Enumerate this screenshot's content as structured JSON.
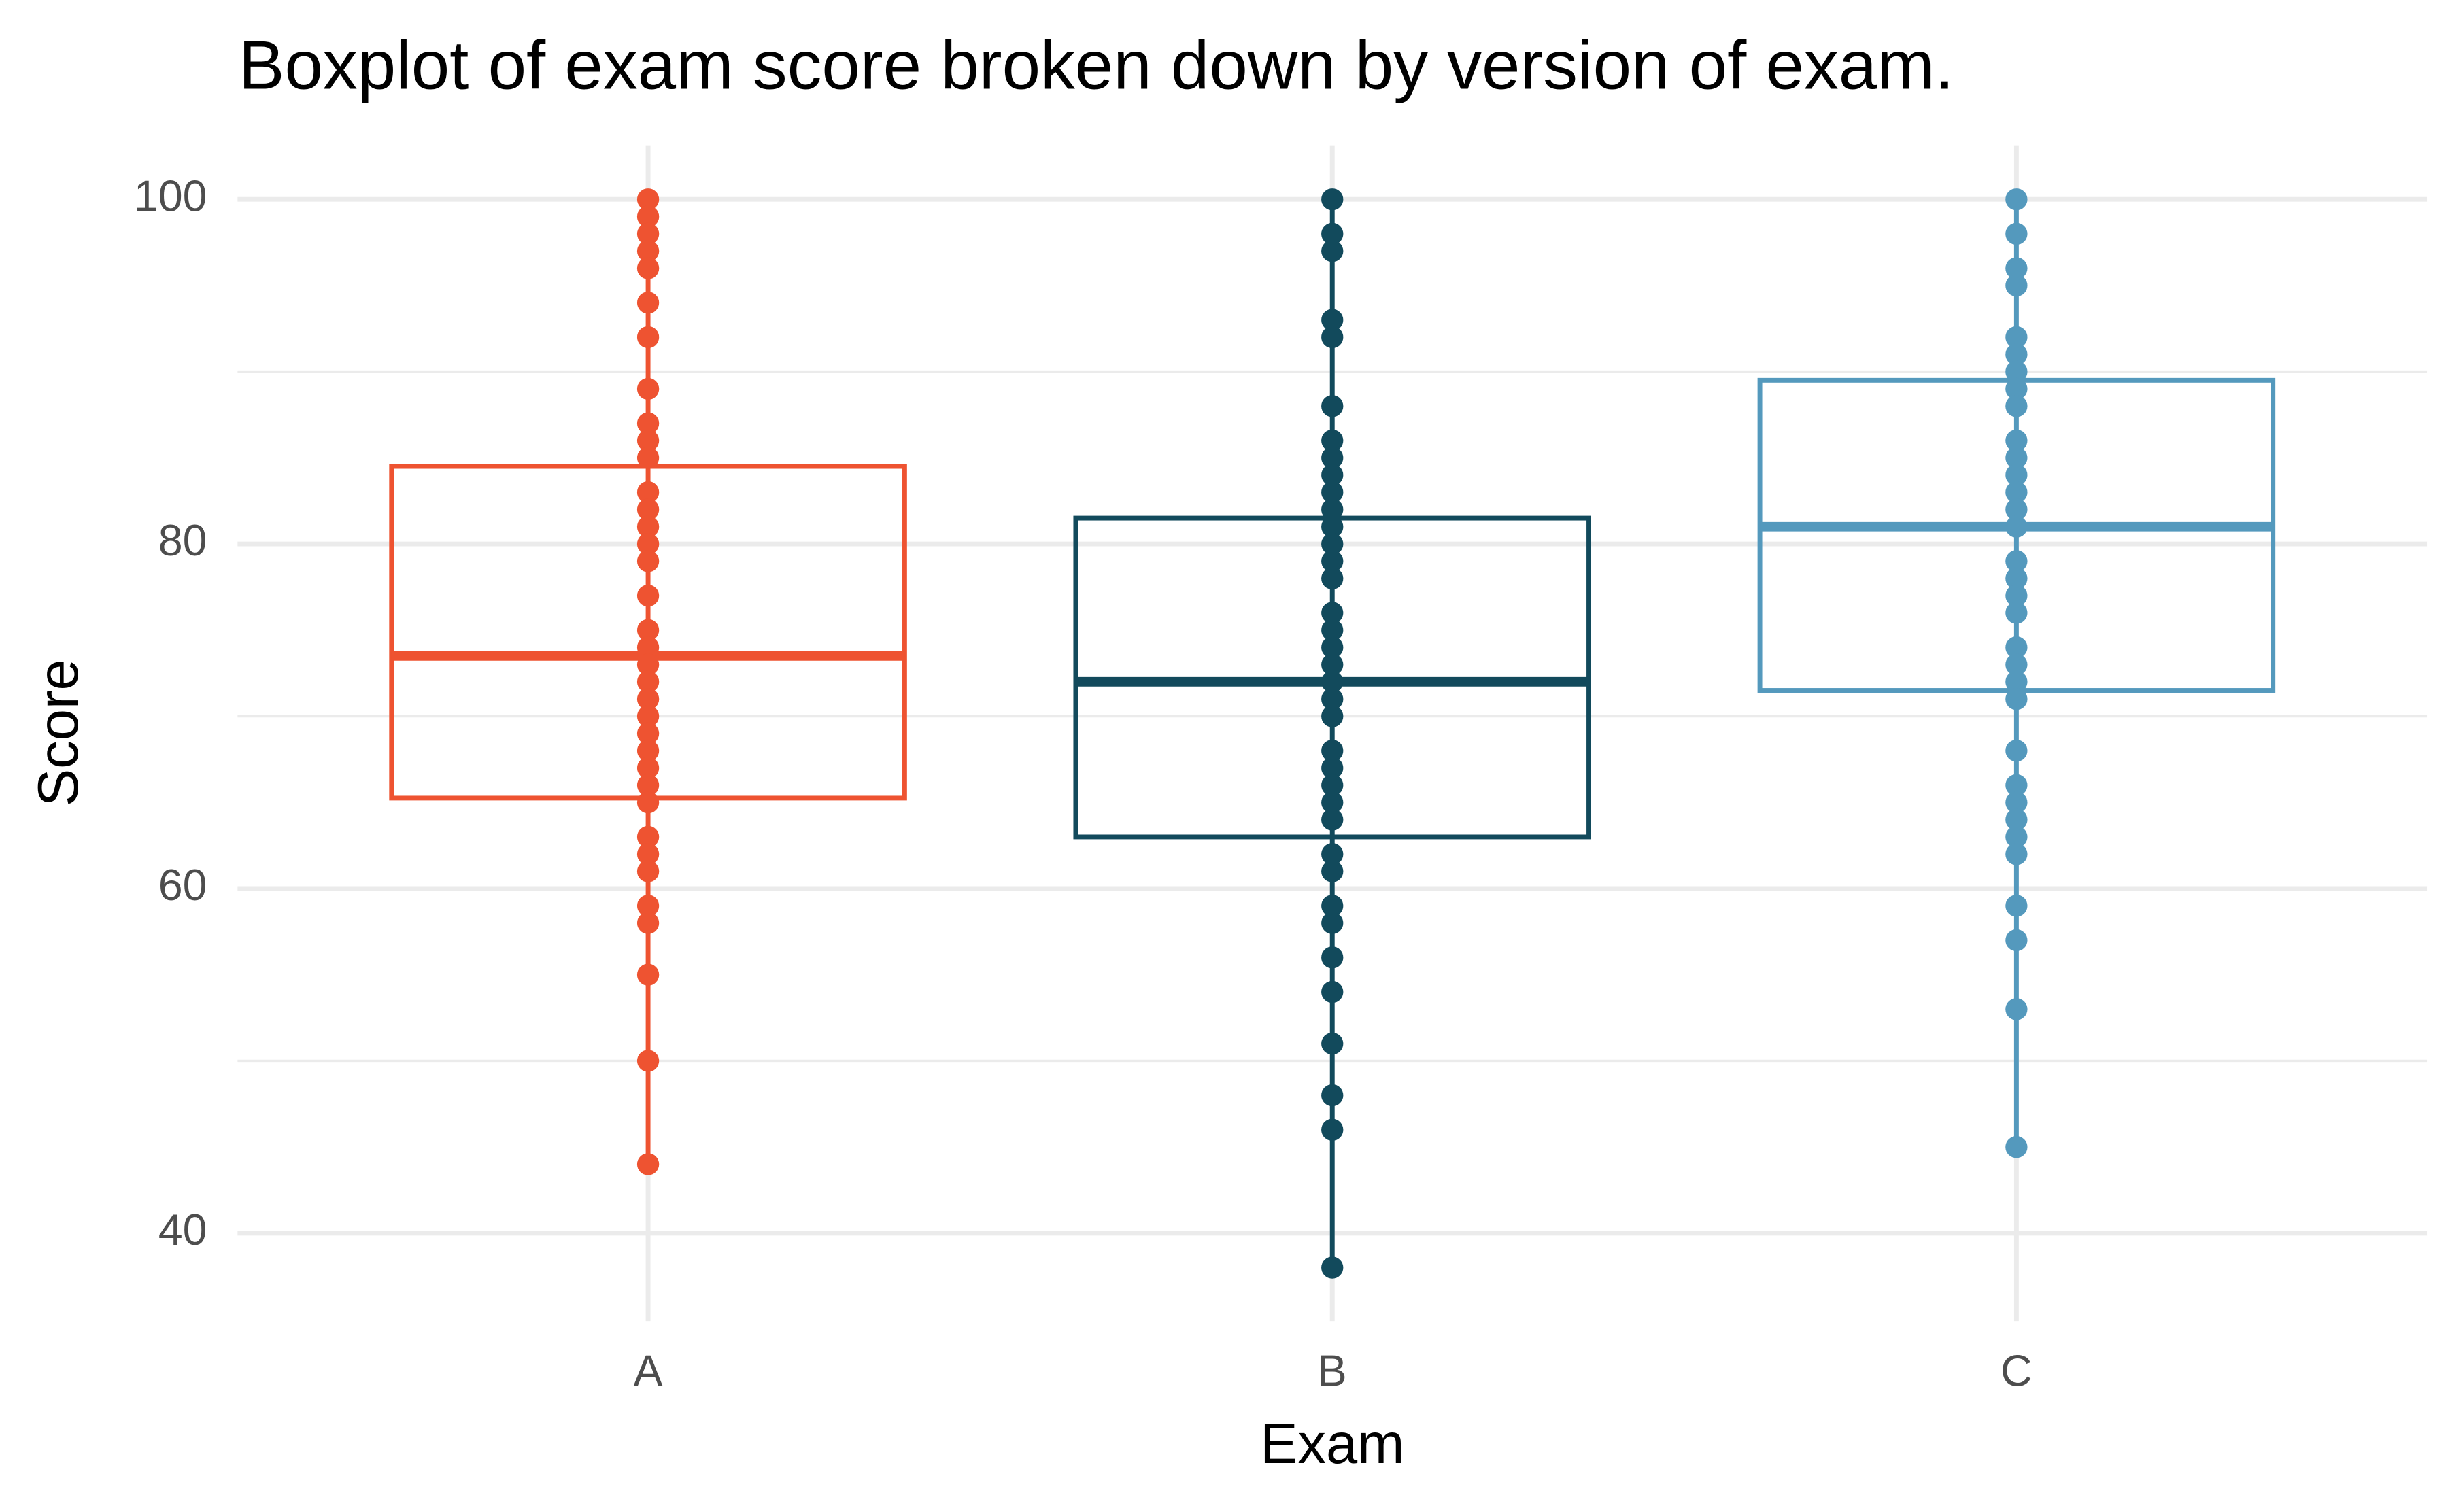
{
  "chart_data": {
    "type": "boxplot",
    "title": "Boxplot of exam score broken down by version of exam.",
    "x_label": "Exam",
    "y_label": "Score",
    "categories": [
      "A",
      "B",
      "C"
    ],
    "ylim": [
      34.9,
      103.1
    ],
    "yticks": [
      40,
      60,
      80,
      100
    ],
    "minor_yticks": [
      50,
      70,
      90
    ],
    "grid": true,
    "boxes": [
      {
        "color": "#ee5331",
        "min": 44,
        "q1": 65.25,
        "median": 73.5,
        "q3": 84.5,
        "max": 100,
        "points": [
          100,
          99,
          98,
          97,
          96,
          94,
          92,
          89,
          87,
          86,
          85,
          83,
          82,
          81,
          80,
          79,
          77,
          75,
          74,
          73,
          72,
          71,
          70,
          69,
          68,
          67,
          66,
          65,
          63,
          62,
          61,
          59,
          58,
          55,
          50,
          44
        ]
      },
      {
        "color": "#124a5c",
        "min": 38,
        "q1": 63,
        "median": 72,
        "q3": 81.5,
        "max": 100,
        "points": [
          100,
          98,
          97,
          93,
          92,
          88,
          86,
          85,
          84,
          83,
          82,
          81,
          80,
          79,
          78,
          76,
          75,
          74,
          73,
          72,
          71,
          70,
          68,
          67,
          66,
          65,
          64,
          62,
          61,
          59,
          58,
          56,
          54,
          51,
          48,
          46,
          38
        ]
      },
      {
        "color": "#5499bd",
        "min": 45,
        "q1": 71.5,
        "median": 81,
        "q3": 89.5,
        "max": 100,
        "points": [
          100,
          98,
          96,
          95,
          92,
          91,
          90,
          89,
          88,
          86,
          85,
          84,
          83,
          82,
          81,
          79,
          78,
          77,
          76,
          74,
          73,
          72,
          71,
          68,
          66,
          65,
          64,
          63,
          62,
          59,
          57,
          53,
          45
        ]
      }
    ]
  }
}
